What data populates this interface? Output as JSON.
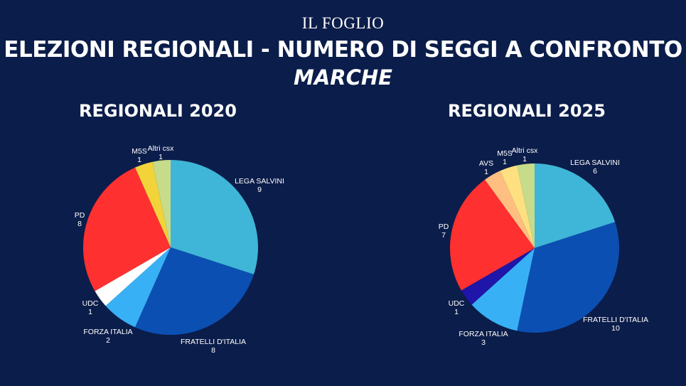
{
  "brand": "IL FOGLIO",
  "title": "ELEZIONI REGIONALI - NUMERO DI SEGGI A CONFRONTO",
  "subtitle": "MARCHE",
  "chart_data": [
    {
      "type": "pie",
      "title": "REGIONALI 2020",
      "slices": [
        {
          "label": "LEGA SALVINI",
          "value": 9,
          "color": "#3fb6d8"
        },
        {
          "label": "FRATELLI D'ITALIA",
          "value": 8,
          "color": "#0b4fb2"
        },
        {
          "label": "FORZA ITALIA",
          "value": 2,
          "color": "#38b0f5"
        },
        {
          "label": "UDC",
          "value": 1,
          "color": "#ffffff"
        },
        {
          "label": "PD",
          "value": 8,
          "color": "#ff3030"
        },
        {
          "label": "M5S",
          "value": 1,
          "color": "#f2d33a"
        },
        {
          "label": "Altri csx",
          "value": 1,
          "color": "#c6dc8a"
        }
      ]
    },
    {
      "type": "pie",
      "title": "REGIONALI 2025",
      "slices": [
        {
          "label": "LEGA SALVINI",
          "value": 6,
          "color": "#3fb6d8"
        },
        {
          "label": "FRATELLI D'ITALIA",
          "value": 10,
          "color": "#0b4fb2"
        },
        {
          "label": "FORZA ITALIA",
          "value": 3,
          "color": "#38b0f5"
        },
        {
          "label": "UDC",
          "value": 1,
          "color": "#1f15a8"
        },
        {
          "label": "PD",
          "value": 7,
          "color": "#ff3030"
        },
        {
          "label": "AVS",
          "value": 1,
          "color": "#ffbf80"
        },
        {
          "label": "M5S",
          "value": 1,
          "color": "#ffe080"
        },
        {
          "label": "Altri csx",
          "value": 1,
          "color": "#c6dc8a"
        }
      ]
    }
  ]
}
